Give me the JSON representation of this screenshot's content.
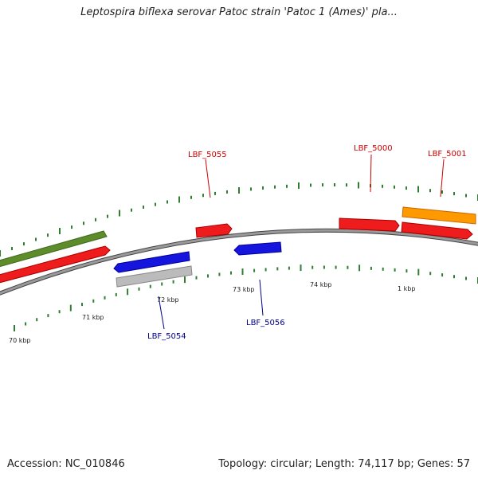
{
  "title": "Leptospira biflexa serovar Patoc strain 'Patoc 1 (Ames)' pla...",
  "footer": {
    "accession": "Accession: NC_010846",
    "topology": "Topology: circular; Length: 74,117 bp; Genes: 57"
  },
  "colors": {
    "backbone": "#808080",
    "tick": "#2f7f2f",
    "red_gene": "#ee1c1c",
    "blue_gene": "#1515dd",
    "orange_gene": "#ff9900",
    "green_gene": "#5e8c2a",
    "grey_gene": "#bbbbbb",
    "label_red": "#cc0000",
    "label_blue": "#000088"
  },
  "tick_labels": [
    {
      "text": "70 kbp"
    },
    {
      "text": "71 kbp"
    },
    {
      "text": "72 kbp"
    },
    {
      "text": "73 kbp"
    },
    {
      "text": "74 kbp"
    },
    {
      "text": "1 kbp"
    }
  ],
  "gene_labels": [
    {
      "text": "LBF_5055",
      "color": "red"
    },
    {
      "text": "LBF_5000",
      "color": "red"
    },
    {
      "text": "LBF_5001",
      "color": "red"
    },
    {
      "text": "LBF_5054",
      "color": "blue"
    },
    {
      "text": "LBF_5056",
      "color": "blue"
    }
  ]
}
